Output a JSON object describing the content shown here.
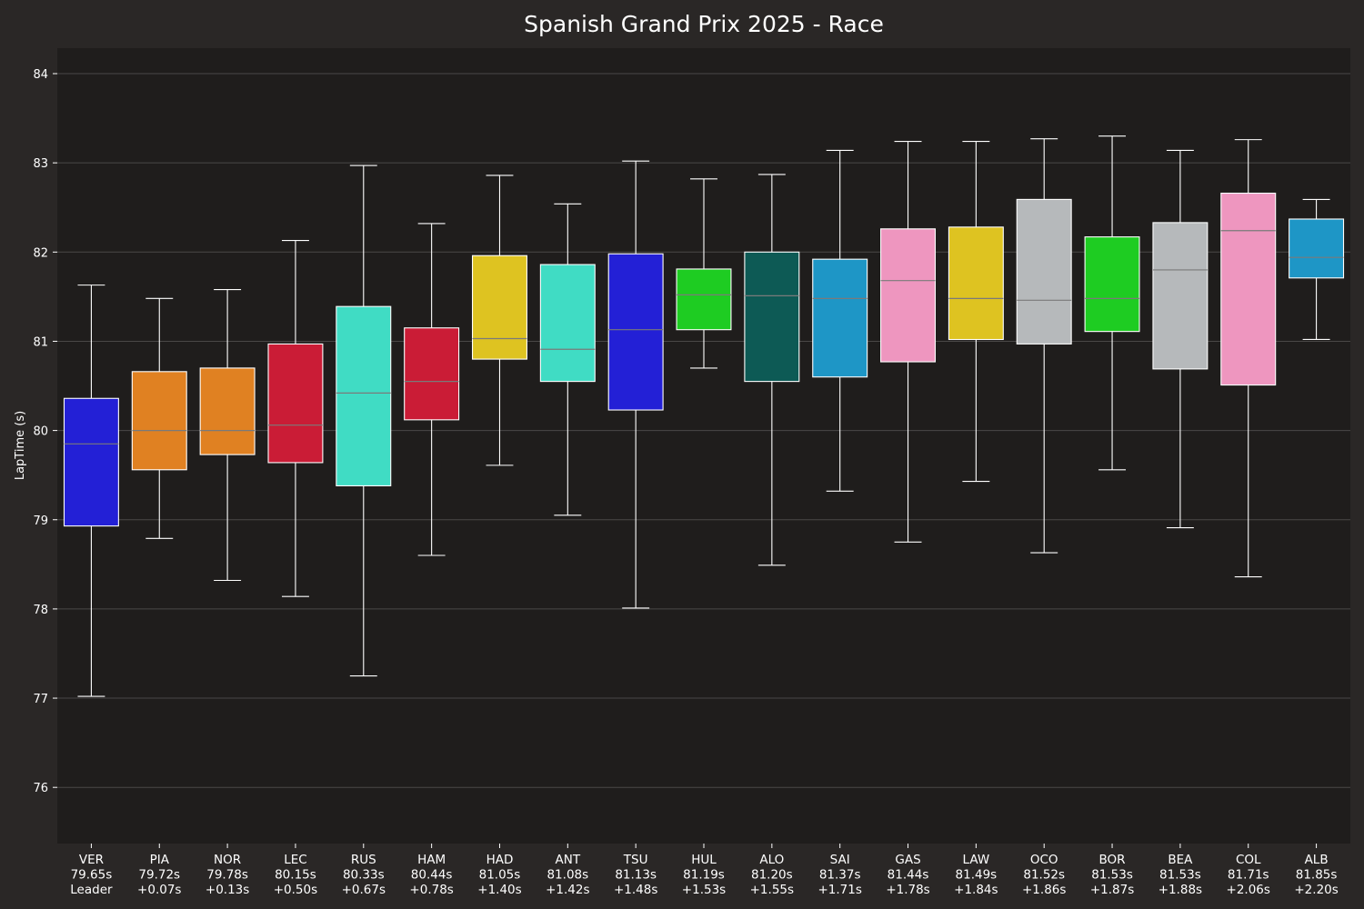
{
  "chart_data": {
    "type": "box",
    "title": "Spanish Grand Prix 2025 - Race",
    "ylabel": "LapTime (s)",
    "xlabel": "",
    "ylim": [
      75.4,
      84.3
    ],
    "yticks": [
      76,
      77,
      78,
      79,
      80,
      81,
      82,
      83,
      84
    ],
    "grid": true,
    "background": "#1f1d1c",
    "figure_background": "#2a2726",
    "series": [
      {
        "driver": "VER",
        "time": "79.65s",
        "gap": "Leader",
        "color": "#2320d6",
        "whisker_low": 77.02,
        "q1": 78.93,
        "median": 79.85,
        "q3": 80.36,
        "whisker_high": 81.63
      },
      {
        "driver": "PIA",
        "time": "79.72s",
        "gap": "+0.07s",
        "color": "#e08122",
        "whisker_low": 78.79,
        "q1": 79.56,
        "median": 80.0,
        "q3": 80.66,
        "whisker_high": 81.48
      },
      {
        "driver": "NOR",
        "time": "79.78s",
        "gap": "+0.13s",
        "color": "#e08122",
        "whisker_low": 78.32,
        "q1": 79.73,
        "median": 80.0,
        "q3": 80.7,
        "whisker_high": 81.58
      },
      {
        "driver": "LEC",
        "time": "80.15s",
        "gap": "+0.50s",
        "color": "#ca1c36",
        "whisker_low": 78.14,
        "q1": 79.64,
        "median": 80.06,
        "q3": 80.97,
        "whisker_high": 82.13
      },
      {
        "driver": "RUS",
        "time": "80.33s",
        "gap": "+0.67s",
        "color": "#40dcc4",
        "whisker_low": 77.25,
        "q1": 79.38,
        "median": 80.42,
        "q3": 81.39,
        "whisker_high": 82.97
      },
      {
        "driver": "HAM",
        "time": "80.44s",
        "gap": "+0.78s",
        "color": "#ca1c36",
        "whisker_low": 78.6,
        "q1": 80.12,
        "median": 80.55,
        "q3": 81.15,
        "whisker_high": 82.32
      },
      {
        "driver": "HAD",
        "time": "81.05s",
        "gap": "+1.40s",
        "color": "#dec321",
        "whisker_low": 79.61,
        "q1": 80.8,
        "median": 81.03,
        "q3": 81.96,
        "whisker_high": 82.86
      },
      {
        "driver": "ANT",
        "time": "81.08s",
        "gap": "+1.42s",
        "color": "#40dcc4",
        "whisker_low": 79.05,
        "q1": 80.55,
        "median": 80.91,
        "q3": 81.86,
        "whisker_high": 82.54
      },
      {
        "driver": "TSU",
        "time": "81.13s",
        "gap": "+1.48s",
        "color": "#2320d6",
        "whisker_low": 78.01,
        "q1": 80.23,
        "median": 81.13,
        "q3": 81.98,
        "whisker_high": 83.02
      },
      {
        "driver": "HUL",
        "time": "81.19s",
        "gap": "+1.53s",
        "color": "#1ecc22",
        "whisker_low": 80.7,
        "q1": 81.13,
        "median": 81.52,
        "q3": 81.81,
        "whisker_high": 82.82
      },
      {
        "driver": "ALO",
        "time": "81.20s",
        "gap": "+1.55s",
        "color": "#0d5a55",
        "whisker_low": 78.49,
        "q1": 80.55,
        "median": 81.51,
        "q3": 82.0,
        "whisker_high": 82.87
      },
      {
        "driver": "SAI",
        "time": "81.37s",
        "gap": "+1.71s",
        "color": "#1e96c6",
        "whisker_low": 79.32,
        "q1": 80.6,
        "median": 81.48,
        "q3": 81.92,
        "whisker_high": 83.14
      },
      {
        "driver": "GAS",
        "time": "81.44s",
        "gap": "+1.78s",
        "color": "#ee96bf",
        "whisker_low": 78.75,
        "q1": 80.77,
        "median": 81.68,
        "q3": 82.26,
        "whisker_high": 83.24
      },
      {
        "driver": "LAW",
        "time": "81.49s",
        "gap": "+1.84s",
        "color": "#dec321",
        "whisker_low": 79.43,
        "q1": 81.02,
        "median": 81.48,
        "q3": 82.28,
        "whisker_high": 83.24
      },
      {
        "driver": "OCO",
        "time": "81.52s",
        "gap": "+1.86s",
        "color": "#b6b9bb",
        "whisker_low": 78.63,
        "q1": 80.97,
        "median": 81.46,
        "q3": 82.59,
        "whisker_high": 83.27
      },
      {
        "driver": "BOR",
        "time": "81.53s",
        "gap": "+1.87s",
        "color": "#1ecc22",
        "whisker_low": 79.56,
        "q1": 81.11,
        "median": 81.48,
        "q3": 82.17,
        "whisker_high": 83.3
      },
      {
        "driver": "BEA",
        "time": "81.53s",
        "gap": "+1.88s",
        "color": "#b6b9bb",
        "whisker_low": 78.91,
        "q1": 80.69,
        "median": 81.8,
        "q3": 82.33,
        "whisker_high": 83.14
      },
      {
        "driver": "COL",
        "time": "81.71s",
        "gap": "+2.06s",
        "color": "#ee96bf",
        "whisker_low": 78.36,
        "q1": 80.51,
        "median": 82.24,
        "q3": 82.66,
        "whisker_high": 83.26
      },
      {
        "driver": "ALB",
        "time": "81.85s",
        "gap": "+2.20s",
        "color": "#1e96c6",
        "whisker_low": 81.02,
        "q1": 81.71,
        "median": 81.94,
        "q3": 82.37,
        "whisker_high": 82.59
      }
    ]
  }
}
